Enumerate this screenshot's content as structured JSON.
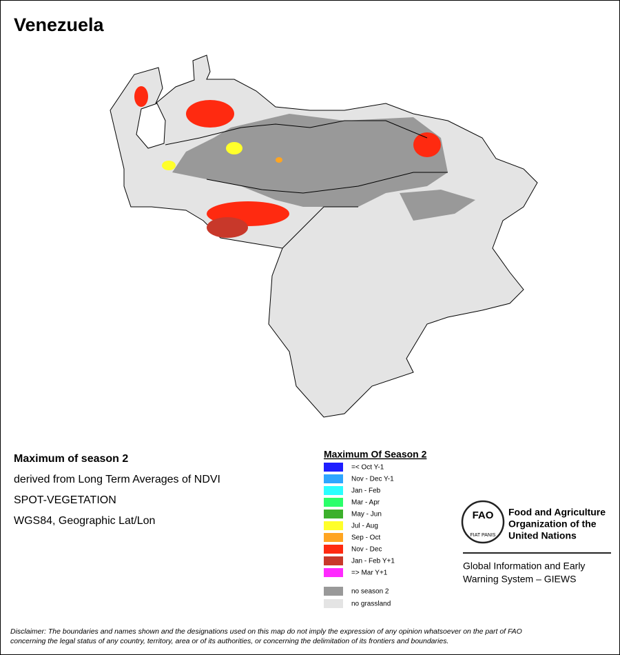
{
  "title": "Venezuela",
  "info": [
    "Maximum of season 2",
    "derived from Long Term Averages of NDVI",
    "SPOT-VEGETATION",
    "WGS84, Geographic Lat/Lon"
  ],
  "legend": {
    "title": "Maximum Of Season 2",
    "items": [
      {
        "label": "=< Oct Y-1",
        "color": "#1e1eff"
      },
      {
        "label": "Nov - Dec Y-1",
        "color": "#2ea6ff"
      },
      {
        "label": "Jan - Feb",
        "color": "#2affff"
      },
      {
        "label": "Mar - Apr",
        "color": "#2aff6a"
      },
      {
        "label": "May - Jun",
        "color": "#3cb02c"
      },
      {
        "label": "Jul - Aug",
        "color": "#ffff2a"
      },
      {
        "label": "Sep - Oct",
        "color": "#ffa521"
      },
      {
        "label": "Nov - Dec",
        "color": "#ff2a10"
      },
      {
        "label": "Jan - Feb Y+1",
        "color": "#c8382a"
      },
      {
        "label": "=> Mar Y+1",
        "color": "#ff2aff"
      }
    ],
    "extra": [
      {
        "label": "no season 2",
        "color": "#999999"
      },
      {
        "label": "no grassland",
        "color": "#e4e4e4"
      }
    ]
  },
  "fao": {
    "logo": "FAO",
    "motto": "FIAT PANIS",
    "name": [
      "Food and Agriculture",
      "Organization of the",
      "United Nations"
    ]
  },
  "giews": [
    "Global Information and Early",
    "Warning System – GIEWS"
  ],
  "disclaimer": [
    "Disclaimer: The boundaries and names shown and the designations used on this map do not imply the expression of any opinion whatsoever on the part of FAO",
    "concerning the legal status of any country, territory, area or of its authorities, or concerning the delimitation of its frontiers and boundaries."
  ]
}
